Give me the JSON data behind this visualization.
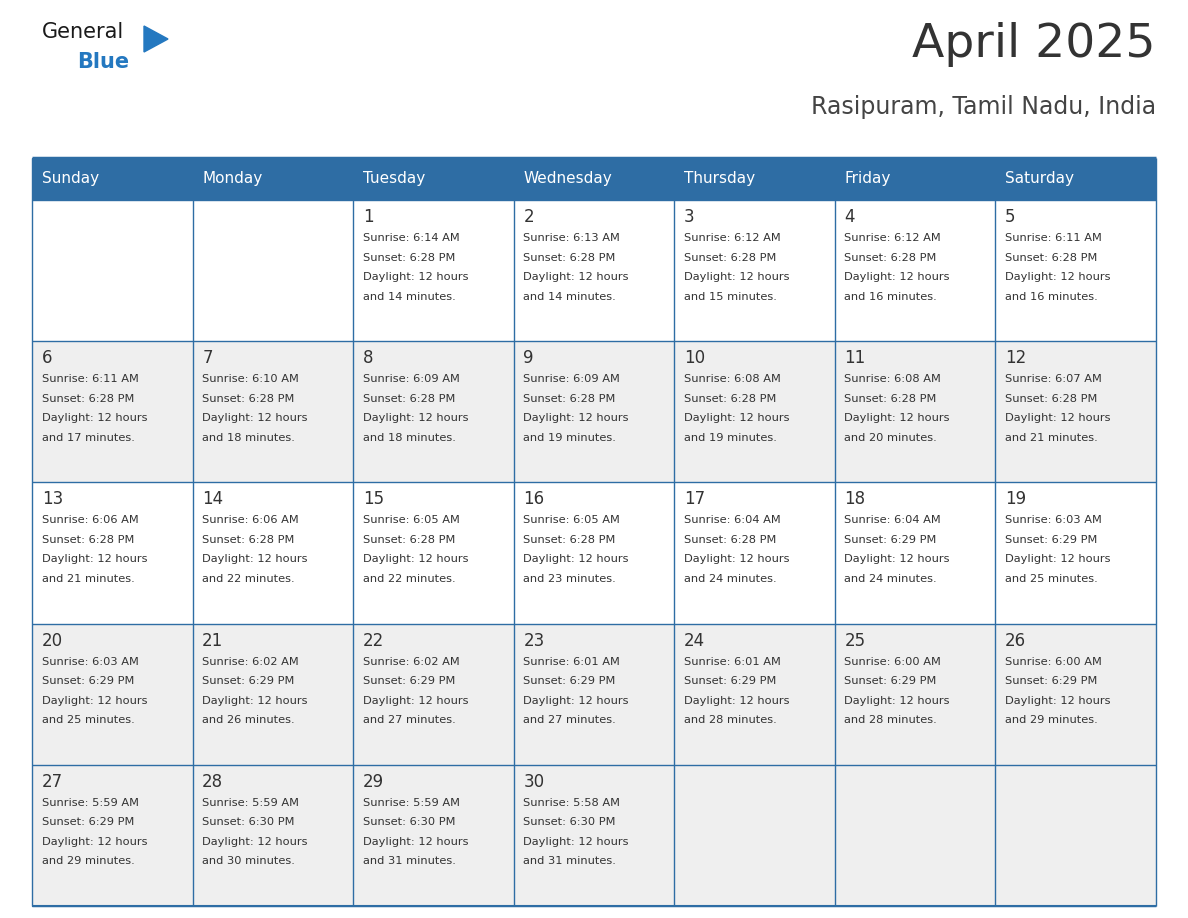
{
  "title": "April 2025",
  "subtitle": "Rasipuram, Tamil Nadu, India",
  "header_bg": "#2E6DA4",
  "header_text": "#FFFFFF",
  "day_names": [
    "Sunday",
    "Monday",
    "Tuesday",
    "Wednesday",
    "Thursday",
    "Friday",
    "Saturday"
  ],
  "cell_bg_odd": "#FFFFFF",
  "cell_bg_even": "#EFEFEF",
  "border_color": "#2E6DA4",
  "text_color": "#333333",
  "title_color": "#333333",
  "subtitle_color": "#444444",
  "logo_general_color": "#1a1a1a",
  "logo_blue_color": "#2478C0",
  "calendar": [
    [
      {
        "day": "",
        "sunrise": "",
        "sunset": "",
        "daylight": ""
      },
      {
        "day": "",
        "sunrise": "",
        "sunset": "",
        "daylight": ""
      },
      {
        "day": "1",
        "sunrise": "6:14 AM",
        "sunset": "6:28 PM",
        "daylight": "12 hours and 14 minutes."
      },
      {
        "day": "2",
        "sunrise": "6:13 AM",
        "sunset": "6:28 PM",
        "daylight": "12 hours and 14 minutes."
      },
      {
        "day": "3",
        "sunrise": "6:12 AM",
        "sunset": "6:28 PM",
        "daylight": "12 hours and 15 minutes."
      },
      {
        "day": "4",
        "sunrise": "6:12 AM",
        "sunset": "6:28 PM",
        "daylight": "12 hours and 16 minutes."
      },
      {
        "day": "5",
        "sunrise": "6:11 AM",
        "sunset": "6:28 PM",
        "daylight": "12 hours and 16 minutes."
      }
    ],
    [
      {
        "day": "6",
        "sunrise": "6:11 AM",
        "sunset": "6:28 PM",
        "daylight": "12 hours and 17 minutes."
      },
      {
        "day": "7",
        "sunrise": "6:10 AM",
        "sunset": "6:28 PM",
        "daylight": "12 hours and 18 minutes."
      },
      {
        "day": "8",
        "sunrise": "6:09 AM",
        "sunset": "6:28 PM",
        "daylight": "12 hours and 18 minutes."
      },
      {
        "day": "9",
        "sunrise": "6:09 AM",
        "sunset": "6:28 PM",
        "daylight": "12 hours and 19 minutes."
      },
      {
        "day": "10",
        "sunrise": "6:08 AM",
        "sunset": "6:28 PM",
        "daylight": "12 hours and 19 minutes."
      },
      {
        "day": "11",
        "sunrise": "6:08 AM",
        "sunset": "6:28 PM",
        "daylight": "12 hours and 20 minutes."
      },
      {
        "day": "12",
        "sunrise": "6:07 AM",
        "sunset": "6:28 PM",
        "daylight": "12 hours and 21 minutes."
      }
    ],
    [
      {
        "day": "13",
        "sunrise": "6:06 AM",
        "sunset": "6:28 PM",
        "daylight": "12 hours and 21 minutes."
      },
      {
        "day": "14",
        "sunrise": "6:06 AM",
        "sunset": "6:28 PM",
        "daylight": "12 hours and 22 minutes."
      },
      {
        "day": "15",
        "sunrise": "6:05 AM",
        "sunset": "6:28 PM",
        "daylight": "12 hours and 22 minutes."
      },
      {
        "day": "16",
        "sunrise": "6:05 AM",
        "sunset": "6:28 PM",
        "daylight": "12 hours and 23 minutes."
      },
      {
        "day": "17",
        "sunrise": "6:04 AM",
        "sunset": "6:28 PM",
        "daylight": "12 hours and 24 minutes."
      },
      {
        "day": "18",
        "sunrise": "6:04 AM",
        "sunset": "6:29 PM",
        "daylight": "12 hours and 24 minutes."
      },
      {
        "day": "19",
        "sunrise": "6:03 AM",
        "sunset": "6:29 PM",
        "daylight": "12 hours and 25 minutes."
      }
    ],
    [
      {
        "day": "20",
        "sunrise": "6:03 AM",
        "sunset": "6:29 PM",
        "daylight": "12 hours and 25 minutes."
      },
      {
        "day": "21",
        "sunrise": "6:02 AM",
        "sunset": "6:29 PM",
        "daylight": "12 hours and 26 minutes."
      },
      {
        "day": "22",
        "sunrise": "6:02 AM",
        "sunset": "6:29 PM",
        "daylight": "12 hours and 27 minutes."
      },
      {
        "day": "23",
        "sunrise": "6:01 AM",
        "sunset": "6:29 PM",
        "daylight": "12 hours and 27 minutes."
      },
      {
        "day": "24",
        "sunrise": "6:01 AM",
        "sunset": "6:29 PM",
        "daylight": "12 hours and 28 minutes."
      },
      {
        "day": "25",
        "sunrise": "6:00 AM",
        "sunset": "6:29 PM",
        "daylight": "12 hours and 28 minutes."
      },
      {
        "day": "26",
        "sunrise": "6:00 AM",
        "sunset": "6:29 PM",
        "daylight": "12 hours and 29 minutes."
      }
    ],
    [
      {
        "day": "27",
        "sunrise": "5:59 AM",
        "sunset": "6:29 PM",
        "daylight": "12 hours and 29 minutes."
      },
      {
        "day": "28",
        "sunrise": "5:59 AM",
        "sunset": "6:30 PM",
        "daylight": "12 hours and 30 minutes."
      },
      {
        "day": "29",
        "sunrise": "5:59 AM",
        "sunset": "6:30 PM",
        "daylight": "12 hours and 31 minutes."
      },
      {
        "day": "30",
        "sunrise": "5:58 AM",
        "sunset": "6:30 PM",
        "daylight": "12 hours and 31 minutes."
      },
      {
        "day": "",
        "sunrise": "",
        "sunset": "",
        "daylight": ""
      },
      {
        "day": "",
        "sunrise": "",
        "sunset": "",
        "daylight": ""
      },
      {
        "day": "",
        "sunrise": "",
        "sunset": "",
        "daylight": ""
      }
    ]
  ]
}
